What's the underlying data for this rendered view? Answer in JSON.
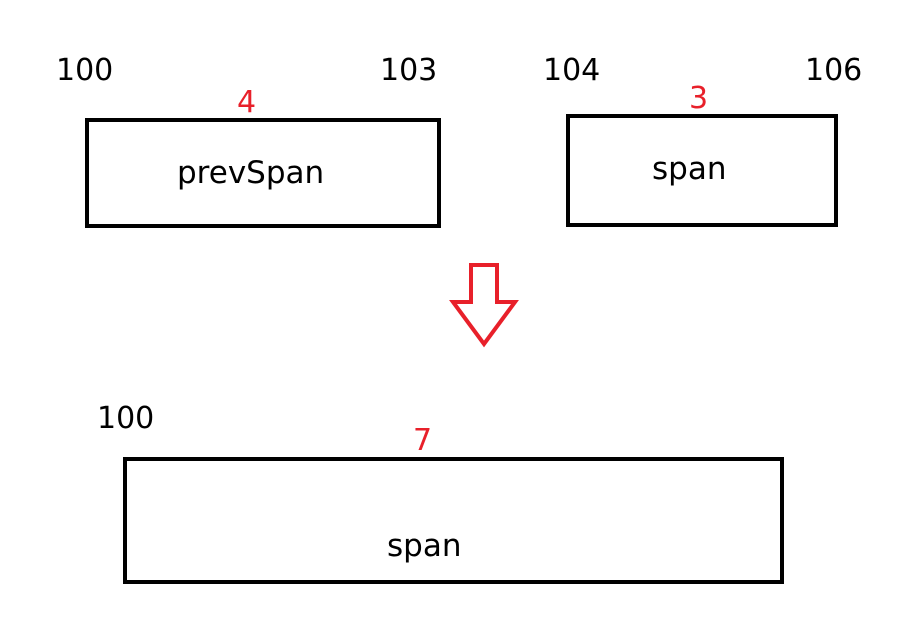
{
  "colors": {
    "length_label": "#e8202a",
    "arrow": "#e8202a",
    "box_border": "#000000",
    "text": "#000000"
  },
  "before": {
    "prev_span": {
      "start": "100",
      "end": "103",
      "length": "4",
      "label": "prevSpan"
    },
    "span": {
      "start": "104",
      "end": "106",
      "length": "3",
      "label": "span"
    }
  },
  "merge_arrow": {
    "icon": "down-arrow-icon",
    "direction": "down"
  },
  "after": {
    "span": {
      "start": "100",
      "length": "7",
      "label": "span"
    }
  }
}
